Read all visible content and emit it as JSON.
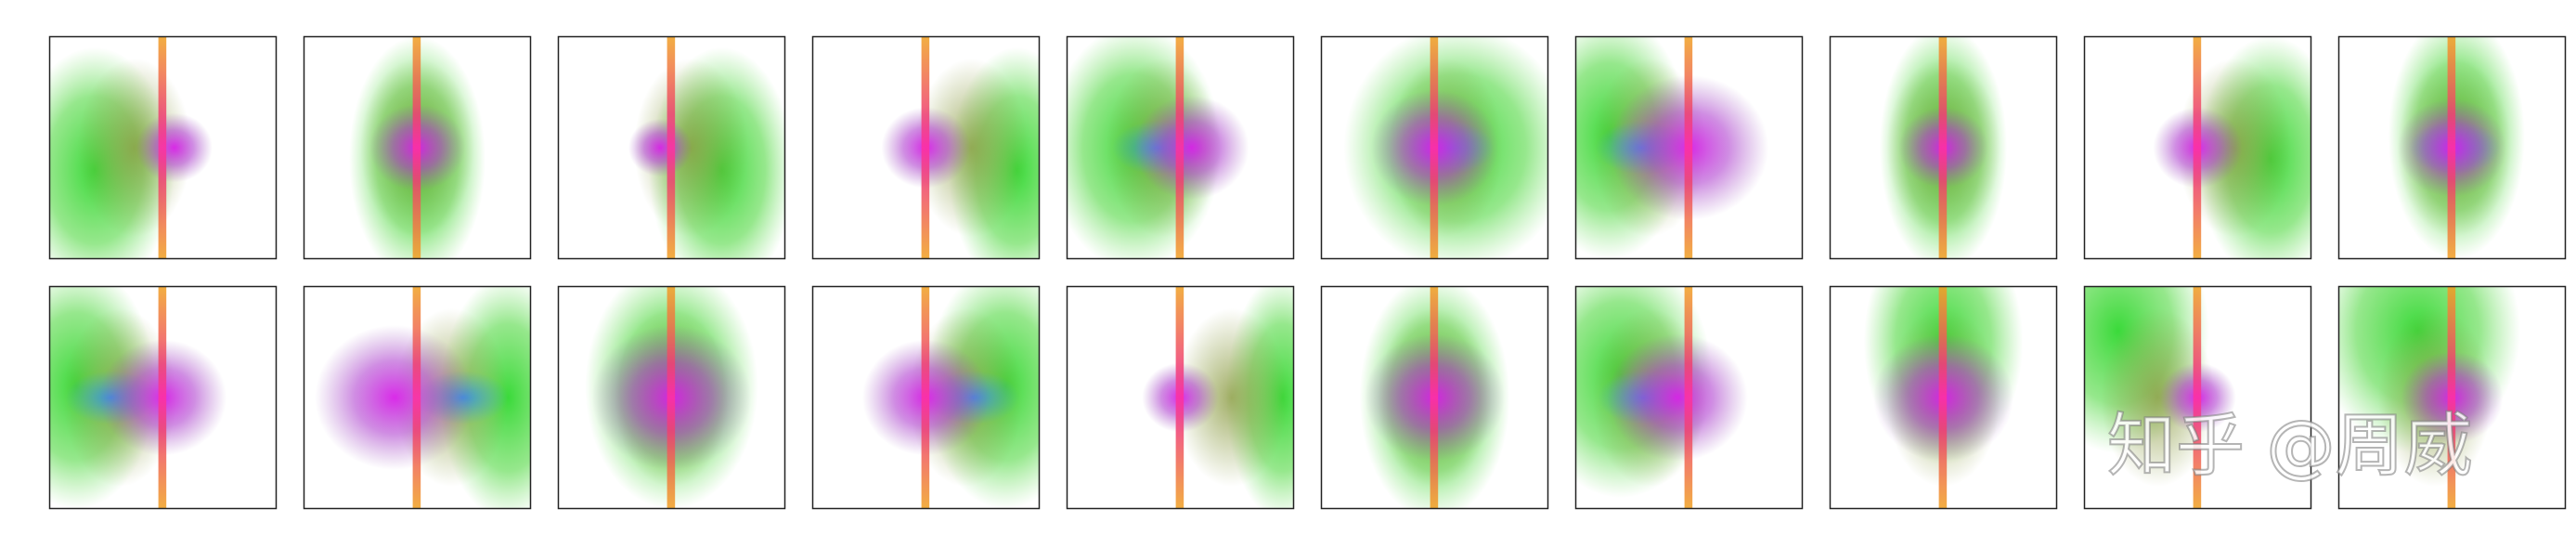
{
  "watermark": "知乎 @周威"
}
